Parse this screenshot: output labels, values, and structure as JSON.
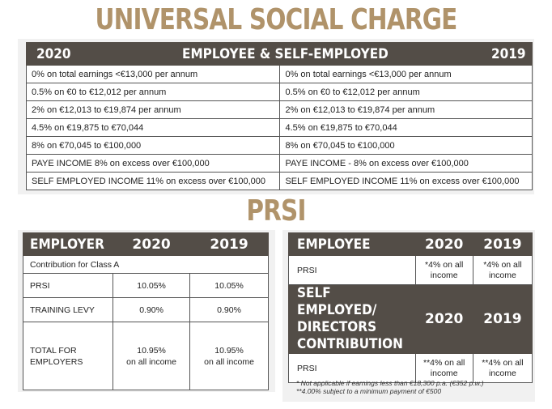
{
  "usc": {
    "title": "UNIVERSAL SOCIAL CHARGE",
    "header": {
      "left": "2020",
      "center": "EMPLOYEE & SELF-EMPLOYED",
      "right": "2019"
    },
    "rows": [
      {
        "y2020": "0% on total earnings <€13,000 per annum",
        "y2019": "0% on total earnings <€13,000 per annum"
      },
      {
        "y2020": "0.5% on €0 to €12,012 per annum",
        "y2019": "0.5% on €0 to €12,012 per annum"
      },
      {
        "y2020": "2% on €12,013 to €19,874 per annum",
        "y2019": "2% on €12,013 to €19,874 per annum"
      },
      {
        "y2020": "4.5% on €19,875 to €70,044",
        "y2019": "4.5% on €19,875 to €70,044"
      },
      {
        "y2020": "8% on €70,045 to €100,000",
        "y2019": "8% on €70,045 to €100,000"
      },
      {
        "y2020": "PAYE INCOME 8% on excess over €100,000",
        "y2019": "PAYE INCOME - 8% on excess over €100,000"
      },
      {
        "y2020": "SELF EMPLOYED INCOME 11% on excess over €100,000",
        "y2019": "SELF EMPLOYED INCOME 11% on excess over €100,000"
      }
    ]
  },
  "prsi": {
    "title": "PRSI",
    "employer": {
      "header": {
        "label": "EMPLOYER",
        "y2020": "2020",
        "y2019": "2019"
      },
      "class_note": "Contribution for Class A",
      "rows": [
        {
          "label": "PRSI",
          "y2020": "10.05%",
          "y2019": "10.05%"
        },
        {
          "label": "TRAINING LEVY",
          "y2020": "0.90%",
          "y2019": "0.90%"
        }
      ],
      "total": {
        "label1": "TOTAL FOR",
        "label2": "EMPLOYERS",
        "y2020_1": "10.95%",
        "y2020_2": "on all income",
        "y2019_1": "10.95%",
        "y2019_2": "on all income"
      }
    },
    "employee": {
      "header": {
        "label": "EMPLOYEE",
        "y2020": "2020",
        "y2019": "2019"
      },
      "row": {
        "label": "PRSI",
        "y2020_1": "*4% on all",
        "y2020_2": "income",
        "y2019_1": "*4% on all",
        "y2019_2": "income"
      }
    },
    "self_employed": {
      "header": {
        "label1": "SELF EMPLOYED/",
        "label2": "DIRECTORS",
        "label3": "CONTRIBUTION",
        "y2020": "2020",
        "y2019": "2019"
      },
      "row": {
        "label": "PRSI",
        "y2020_1": "**4% on all",
        "y2020_2": "income",
        "y2019_1": "**4% on all",
        "y2019_2": "income"
      }
    },
    "notes": [
      "* Not applicable if earnings less than €18,300 p.a. (€352 p.w.)",
      "**4.00% subject to a minimum payment of €500"
    ]
  }
}
